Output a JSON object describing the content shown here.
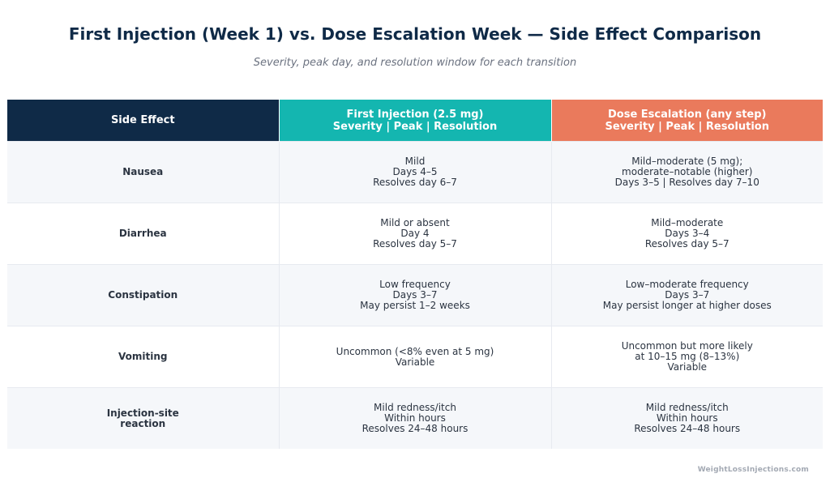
{
  "header": {
    "title": "First Injection (Week 1) vs. Dose Escalation Week — Side Effect Comparison",
    "subtitle": "Severity, peak day, and resolution window for each transition"
  },
  "table": {
    "columns": [
      {
        "lines": [
          "Side Effect"
        ]
      },
      {
        "lines": [
          "First Injection (2.5 mg)",
          "Severity | Peak | Resolution"
        ]
      },
      {
        "lines": [
          "Dose Escalation (any step)",
          "Severity | Peak | Resolution"
        ]
      }
    ],
    "rows": [
      {
        "effect": [
          "Nausea"
        ],
        "first": [
          "Mild",
          "Days 4–5",
          "Resolves day 6–7"
        ],
        "escalation": [
          "Mild–moderate (5 mg);",
          "moderate–notable (higher)",
          "Days 3–5 | Resolves day 7–10"
        ]
      },
      {
        "effect": [
          "Diarrhea"
        ],
        "first": [
          "Mild or absent",
          "Day 4",
          "Resolves day 5–7"
        ],
        "escalation": [
          "Mild–moderate",
          "Days 3–4",
          "Resolves day 5–7"
        ]
      },
      {
        "effect": [
          "Constipation"
        ],
        "first": [
          "Low frequency",
          "Days 3–7",
          "May persist 1–2 weeks"
        ],
        "escalation": [
          "Low–moderate frequency",
          "Days 3–7",
          "May persist longer at higher doses"
        ]
      },
      {
        "effect": [
          "Vomiting"
        ],
        "first": [
          "Uncommon (<8% even at 5 mg)",
          "Variable"
        ],
        "escalation": [
          "Uncommon but more likely",
          "at 10–15 mg (8–13%)",
          "Variable"
        ]
      },
      {
        "effect": [
          "Injection-site",
          "reaction"
        ],
        "first": [
          "Mild redness/itch",
          "Within hours",
          "Resolves 24–48 hours"
        ],
        "escalation": [
          "Mild redness/itch",
          "Within hours",
          "Resolves 24–48 hours"
        ]
      }
    ]
  },
  "footer": {
    "source": "WeightLossInjections.com"
  },
  "colors": {
    "title": "#0f2a47",
    "header_effect": "#0f2a47",
    "header_first": "#14b6b0",
    "header_escalation": "#ea7a5c",
    "row_alt": "#f5f7fa"
  }
}
